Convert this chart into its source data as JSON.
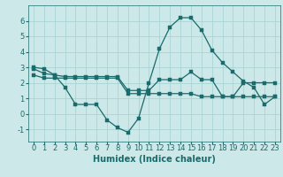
{
  "xlabel": "Humidex (Indice chaleur)",
  "bg_color": "#cce8e8",
  "line_color": "#1a6b6b",
  "grid_color": "#aad4d4",
  "xlim": [
    -0.5,
    23.5
  ],
  "ylim": [
    -1.8,
    7.0
  ],
  "yticks": [
    -1,
    0,
    1,
    2,
    3,
    4,
    5,
    6
  ],
  "xticks": [
    0,
    1,
    2,
    3,
    4,
    5,
    6,
    7,
    8,
    9,
    10,
    11,
    12,
    13,
    14,
    15,
    16,
    17,
    18,
    19,
    20,
    21,
    22,
    23
  ],
  "series1_x": [
    0,
    1,
    2,
    3,
    4,
    5,
    6,
    7,
    8,
    9,
    10,
    11,
    12,
    13,
    14,
    15,
    16,
    17,
    18,
    19,
    20,
    21,
    22,
    23
  ],
  "series1_y": [
    3.0,
    2.9,
    2.5,
    1.7,
    0.6,
    0.6,
    0.6,
    -0.4,
    -0.9,
    -1.2,
    -0.3,
    2.0,
    4.2,
    5.6,
    6.2,
    6.2,
    5.4,
    4.1,
    3.3,
    2.7,
    2.1,
    1.7,
    0.6,
    1.1
  ],
  "series2_x": [
    0,
    1,
    2,
    3,
    4,
    5,
    6,
    7,
    8,
    9,
    10,
    11,
    12,
    13,
    14,
    15,
    16,
    17,
    18,
    19,
    20,
    21,
    22,
    23
  ],
  "series2_y": [
    2.9,
    2.6,
    2.5,
    2.4,
    2.4,
    2.4,
    2.4,
    2.4,
    2.4,
    1.5,
    1.5,
    1.5,
    2.2,
    2.2,
    2.2,
    2.7,
    2.2,
    2.2,
    1.1,
    1.1,
    2.0,
    2.0,
    2.0,
    2.0
  ],
  "series3_x": [
    0,
    1,
    2,
    3,
    4,
    5,
    6,
    7,
    8,
    9,
    10,
    11,
    12,
    13,
    14,
    15,
    16,
    17,
    18,
    19,
    20,
    21,
    22,
    23
  ],
  "series3_y": [
    2.5,
    2.3,
    2.3,
    2.3,
    2.3,
    2.3,
    2.3,
    2.3,
    2.3,
    1.3,
    1.3,
    1.3,
    1.3,
    1.3,
    1.3,
    1.3,
    1.1,
    1.1,
    1.1,
    1.1,
    1.1,
    1.1,
    1.1,
    1.1
  ],
  "tick_fontsize": 6.0,
  "xlabel_fontsize": 7.0,
  "line_width": 0.9,
  "marker_size": 2.2
}
